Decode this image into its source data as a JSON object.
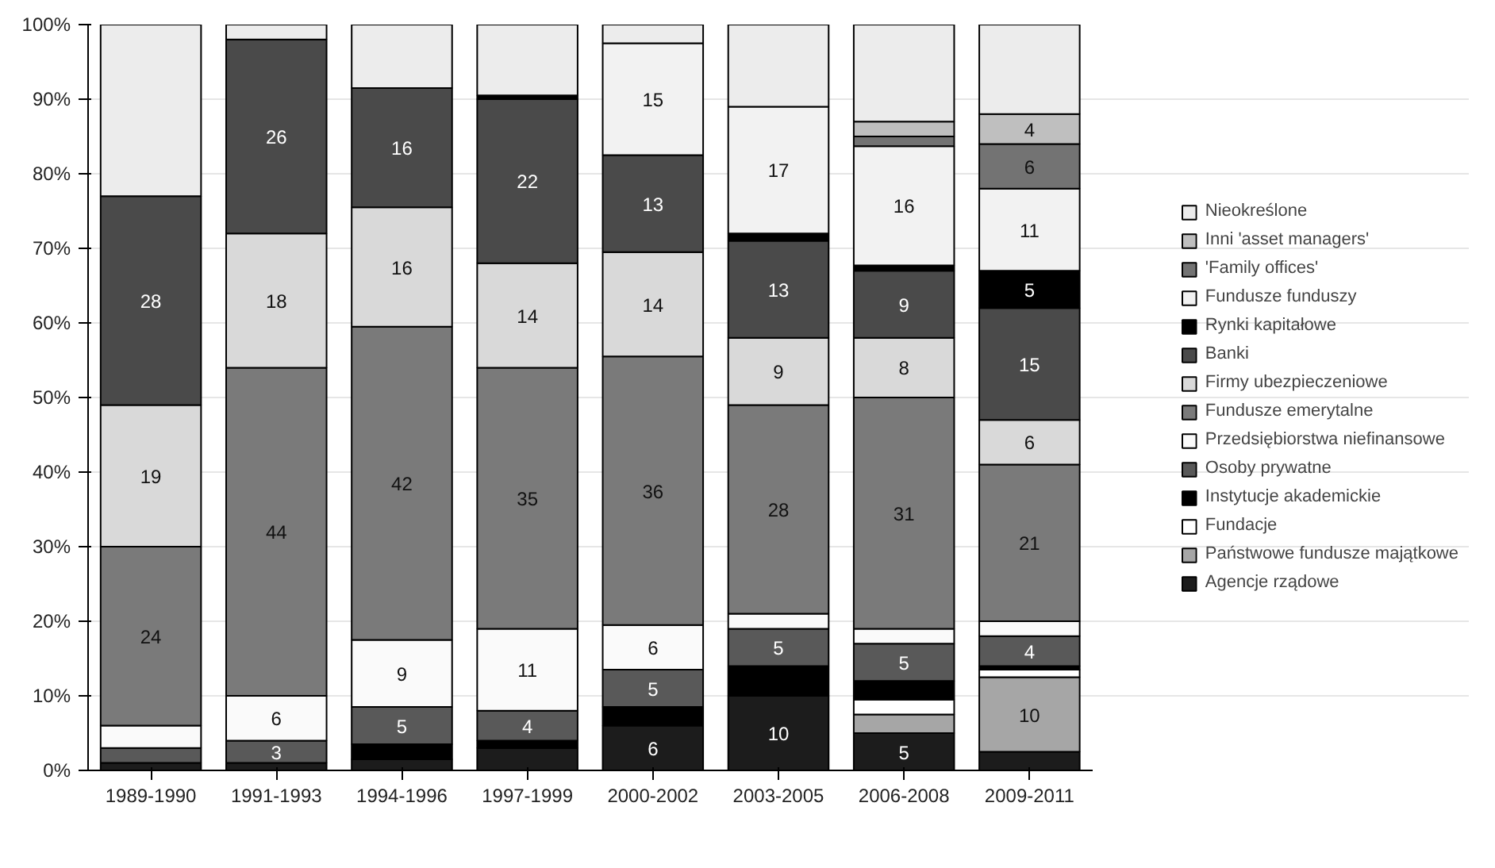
{
  "chart_data": {
    "type": "bar",
    "stacked": true,
    "categories": [
      "1989-1990",
      "1991-1993",
      "1994-1996",
      "1997-1999",
      "2000-2002",
      "2003-2005",
      "2006-2008",
      "2009-2011"
    ],
    "ylim": [
      0,
      100
    ],
    "yticks": [
      {
        "value": 0,
        "label": "0%"
      },
      {
        "value": 10,
        "label": "10%"
      },
      {
        "value": 20,
        "label": "20%"
      },
      {
        "value": 30,
        "label": "30%"
      },
      {
        "value": 40,
        "label": "40%"
      },
      {
        "value": 50,
        "label": "50%"
      },
      {
        "value": 60,
        "label": "60%"
      },
      {
        "value": 70,
        "label": "70%"
      },
      {
        "value": 80,
        "label": "80%"
      },
      {
        "value": 90,
        "label": "90%"
      },
      {
        "value": 100,
        "label": "100%"
      }
    ],
    "grid": "y",
    "legend": "right",
    "series": [
      {
        "name": "Agencje rządowe",
        "color": "#1c1c1c",
        "values": [
          1,
          1,
          1.5,
          3,
          6,
          10,
          5,
          2.5
        ],
        "value_labels": [
          null,
          null,
          null,
          null,
          "6",
          "10",
          "5",
          null
        ]
      },
      {
        "name": "Państwowe fundusze majątkowe",
        "color": "#a6a6a6",
        "values": [
          null,
          null,
          null,
          null,
          null,
          null,
          2.5,
          10
        ],
        "value_labels": [
          null,
          null,
          null,
          null,
          null,
          null,
          null,
          "10"
        ]
      },
      {
        "name": "Fundacje",
        "color": "#ffffff",
        "values": [
          null,
          null,
          null,
          null,
          null,
          null,
          2,
          1
        ],
        "value_labels": [
          null,
          null,
          null,
          null,
          null,
          null,
          null,
          null
        ]
      },
      {
        "name": "Instytucje akademickie",
        "color": "#000000",
        "values": [
          null,
          null,
          2,
          1,
          2.5,
          4,
          2.5,
          0.5
        ],
        "value_labels": [
          null,
          null,
          null,
          null,
          null,
          null,
          null,
          null
        ]
      },
      {
        "name": "Osoby prywatne",
        "color": "#595959",
        "values": [
          2,
          3,
          5,
          4,
          5,
          5,
          5,
          4
        ],
        "value_labels": [
          null,
          "3",
          "5",
          "4",
          "5",
          "5",
          "5",
          "4"
        ]
      },
      {
        "name": "Przedsiębiorstwa niefinansowe",
        "color": "#fafafa",
        "values": [
          3,
          6,
          9,
          11,
          6,
          2,
          2,
          2
        ],
        "value_labels": [
          null,
          "6",
          "9",
          "11",
          "6",
          null,
          null,
          null
        ]
      },
      {
        "name": "Fundusze emerytalne",
        "color": "#7a7a7a",
        "values": [
          24,
          44,
          42,
          35,
          36,
          28,
          31,
          21
        ],
        "value_labels": [
          "24",
          "44",
          "42",
          "35",
          "36",
          "28",
          "31",
          "21"
        ]
      },
      {
        "name": "Firmy ubezpieczeniowe",
        "color": "#d9d9d9",
        "values": [
          19,
          18,
          16,
          14,
          14,
          9,
          8,
          6
        ],
        "value_labels": [
          "19",
          "18",
          "16",
          "14",
          "14",
          "9",
          "8",
          "6"
        ]
      },
      {
        "name": "Banki",
        "color": "#4a4a4a",
        "values": [
          28,
          26,
          16,
          22,
          13,
          13,
          9,
          15
        ],
        "value_labels": [
          "28",
          "26",
          "16",
          "22",
          "13",
          "13",
          "9",
          "15"
        ]
      },
      {
        "name": "Rynki kapitałowe",
        "color": "#000000",
        "values": [
          null,
          null,
          null,
          0.5,
          null,
          1,
          0.7,
          5
        ],
        "value_labels": [
          null,
          null,
          null,
          null,
          null,
          null,
          null,
          "5"
        ]
      },
      {
        "name": "Fundusze funduszy",
        "color": "#f2f2f2",
        "values": [
          null,
          null,
          null,
          null,
          15,
          17,
          16,
          11
        ],
        "value_labels": [
          null,
          null,
          null,
          null,
          "15",
          "17",
          "16",
          "11"
        ]
      },
      {
        "name": "'Family offices'",
        "color": "#737373",
        "values": [
          null,
          null,
          null,
          null,
          null,
          null,
          1.3,
          6
        ],
        "value_labels": [
          null,
          null,
          null,
          null,
          null,
          null,
          null,
          "6"
        ]
      },
      {
        "name": "Inni 'asset managers'",
        "color": "#bfbfbf",
        "values": [
          null,
          null,
          null,
          null,
          null,
          null,
          2,
          4
        ],
        "value_labels": [
          null,
          null,
          null,
          null,
          null,
          null,
          null,
          "4"
        ]
      },
      {
        "name": "Nieokreślone",
        "color": "#ececec",
        "values": [
          23,
          2,
          8.5,
          9.5,
          2.5,
          11,
          13,
          12
        ],
        "value_labels": [
          null,
          null,
          null,
          null,
          null,
          null,
          null,
          null
        ]
      }
    ]
  }
}
